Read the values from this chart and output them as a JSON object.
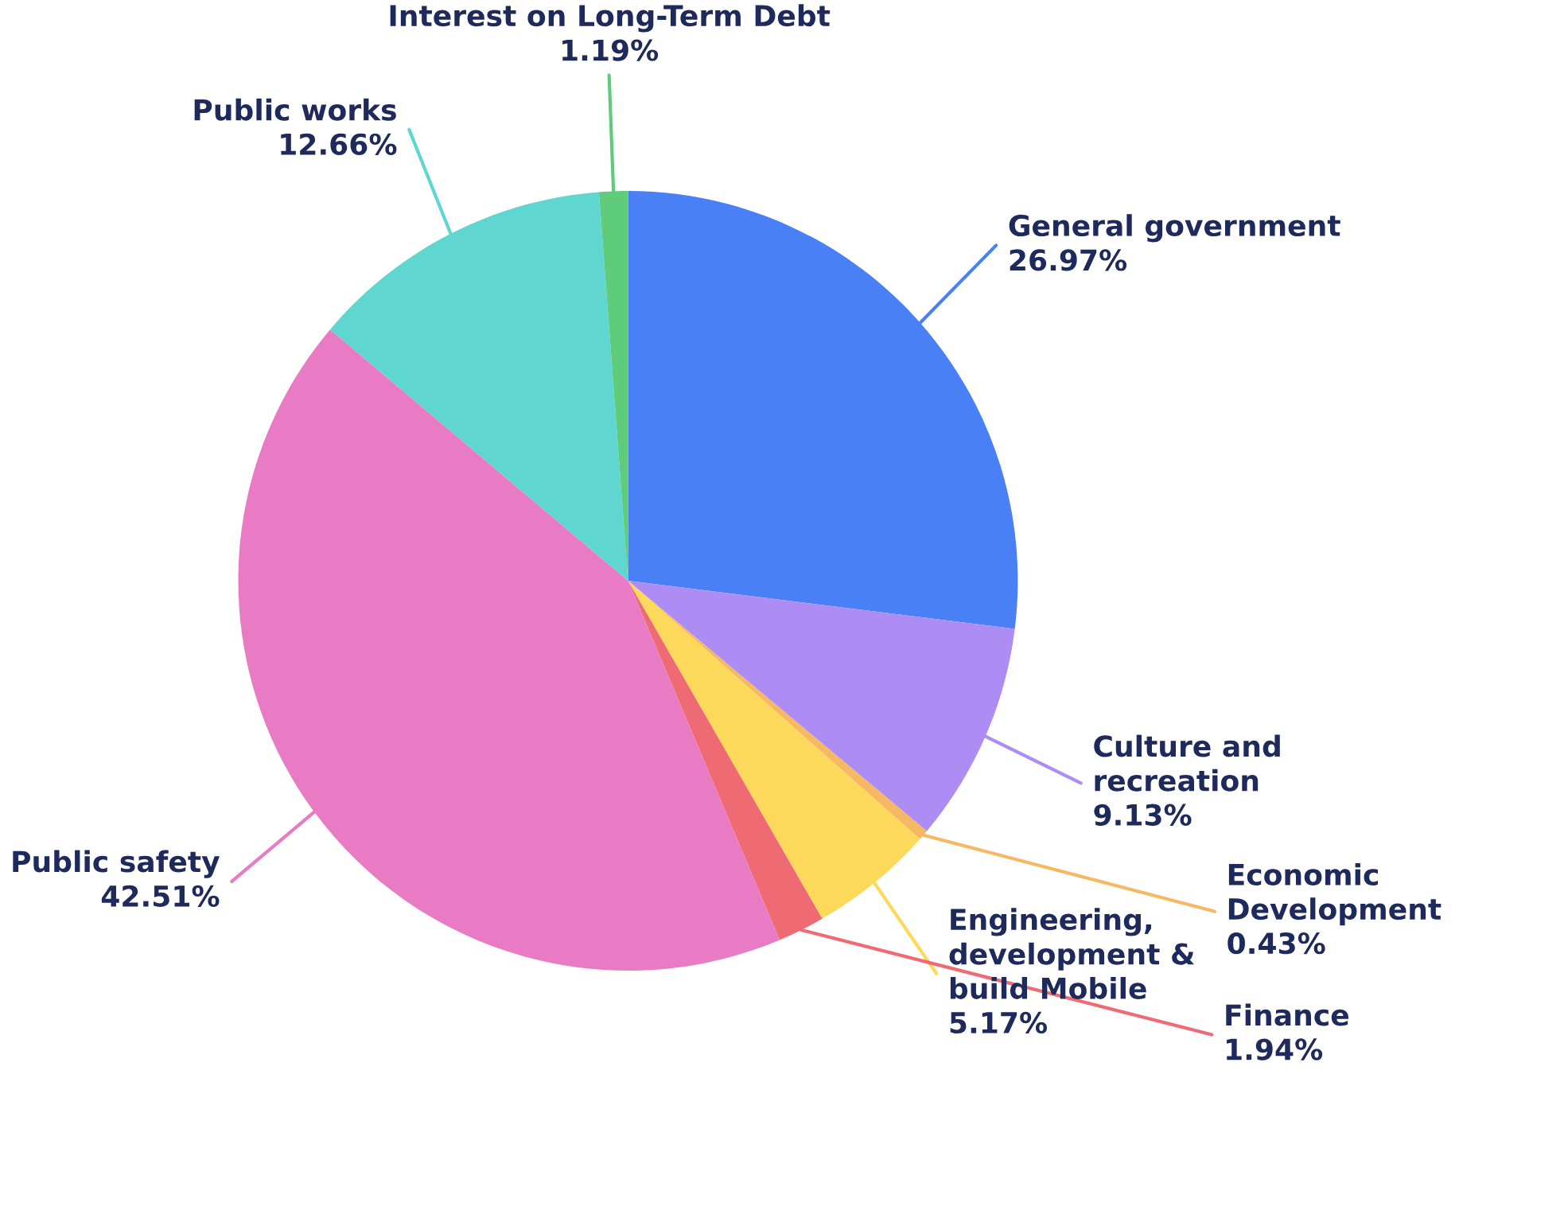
{
  "chart_data": {
    "type": "pie",
    "categories": [
      "General government",
      "Culture and recreation",
      "Economic Development",
      "Engineering, development & build Mobile",
      "Finance",
      "Public safety",
      "Public works",
      "Interest on Long-Term Debt"
    ],
    "values": [
      26.97,
      9.13,
      0.43,
      5.17,
      1.94,
      42.51,
      12.66,
      1.19
    ],
    "value_labels": [
      "26.97%",
      "9.13%",
      "0.43%",
      "5.17%",
      "1.94%",
      "42.51%",
      "12.66%",
      "1.19%"
    ],
    "colors": [
      "#4a80f5",
      "#ad8cf4",
      "#f6b862",
      "#fcd95b",
      "#ef6b73",
      "#e97bc4",
      "#5fd6d0",
      "#5fcc7c"
    ],
    "legend": false
  }
}
